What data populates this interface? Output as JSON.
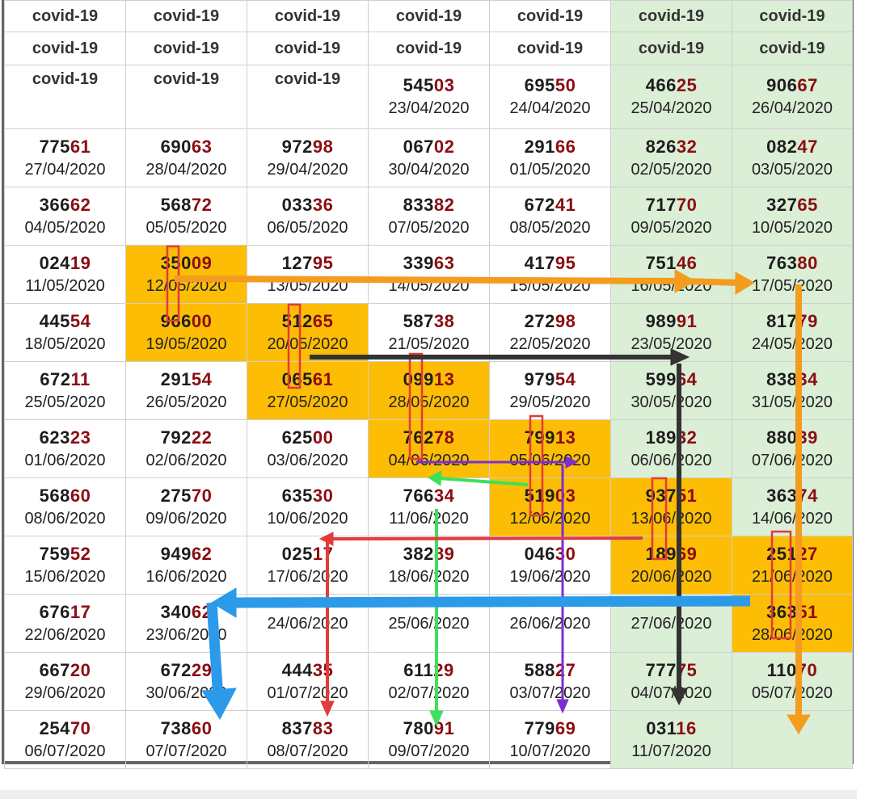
{
  "header_rows": [
    [
      "covid-19",
      "covid-19",
      "covid-19",
      "covid-19",
      "covid-19",
      "covid-19",
      "covid-19"
    ],
    [
      "covid-19",
      "covid-19",
      "covid-19",
      "covid-19",
      "covid-19",
      "covid-19",
      "covid-19"
    ]
  ],
  "row3": {
    "labels": [
      "covid-19",
      "covid-19",
      "covid-19"
    ],
    "cells": [
      {
        "a": "545",
        "b": "03",
        "date": "23/04/2020"
      },
      {
        "a": "695",
        "b": "50",
        "date": "24/04/2020"
      },
      {
        "a": "466",
        "b": "25",
        "date": "25/04/2020"
      },
      {
        "a": "906",
        "b": "67",
        "date": "26/04/2020"
      }
    ]
  },
  "rows": [
    [
      {
        "a": "775",
        "b": "61",
        "date": "27/04/2020"
      },
      {
        "a": "690",
        "b": "63",
        "date": "28/04/2020"
      },
      {
        "a": "972",
        "b": "98",
        "date": "29/04/2020"
      },
      {
        "a": "067",
        "b": "02",
        "date": "30/04/2020"
      },
      {
        "a": "291",
        "b": "66",
        "date": "01/05/2020"
      },
      {
        "a": "826",
        "b": "32",
        "date": "02/05/2020"
      },
      {
        "a": "082",
        "b": "47",
        "date": "03/05/2020"
      }
    ],
    [
      {
        "a": "366",
        "b": "62",
        "date": "04/05/2020"
      },
      {
        "a": "568",
        "b": "72",
        "date": "05/05/2020"
      },
      {
        "a": "033",
        "b": "36",
        "date": "06/05/2020"
      },
      {
        "a": "833",
        "b": "82",
        "date": "07/05/2020"
      },
      {
        "a": "672",
        "b": "41",
        "date": "08/05/2020"
      },
      {
        "a": "717",
        "b": "70",
        "date": "09/05/2020"
      },
      {
        "a": "327",
        "b": "65",
        "date": "10/05/2020"
      }
    ],
    [
      {
        "a": "024",
        "b": "19",
        "date": "11/05/2020"
      },
      {
        "a": "350",
        "b": "09",
        "date": "12/05/2020"
      },
      {
        "a": "127",
        "b": "95",
        "date": "13/05/2020"
      },
      {
        "a": "339",
        "b": "63",
        "date": "14/05/2020"
      },
      {
        "a": "417",
        "b": "95",
        "date": "15/05/2020"
      },
      {
        "a": "751",
        "b": "46",
        "date": "16/05/2020"
      },
      {
        "a": "763",
        "b": "80",
        "date": "17/05/2020"
      }
    ],
    [
      {
        "a": "445",
        "b": "54",
        "date": "18/05/2020"
      },
      {
        "a": "966",
        "b": "00",
        "date": "19/05/2020"
      },
      {
        "a": "512",
        "b": "65",
        "date": "20/05/2020"
      },
      {
        "a": "587",
        "b": "38",
        "date": "21/05/2020"
      },
      {
        "a": "272",
        "b": "98",
        "date": "22/05/2020"
      },
      {
        "a": "989",
        "b": "91",
        "date": "23/05/2020"
      },
      {
        "a": "817",
        "b": "79",
        "date": "24/05/2020"
      }
    ],
    [
      {
        "a": "672",
        "b": "11",
        "date": "25/05/2020"
      },
      {
        "a": "291",
        "b": "54",
        "date": "26/05/2020"
      },
      {
        "a": "065",
        "b": "61",
        "date": "27/05/2020"
      },
      {
        "a": "099",
        "b": "13",
        "date": "28/05/2020"
      },
      {
        "a": "979",
        "b": "54",
        "date": "29/05/2020"
      },
      {
        "a": "599",
        "b": "64",
        "date": "30/05/2020"
      },
      {
        "a": "838",
        "b": "34",
        "date": "31/05/2020"
      }
    ],
    [
      {
        "a": "623",
        "b": "23",
        "date": "01/06/2020"
      },
      {
        "a": "792",
        "b": "22",
        "date": "02/06/2020"
      },
      {
        "a": "625",
        "b": "00",
        "date": "03/06/2020"
      },
      {
        "a": "762",
        "b": "78",
        "date": "04/06/2020"
      },
      {
        "a": "799",
        "b": "13",
        "date": "05/06/2020"
      },
      {
        "a": "189",
        "b": "32",
        "date": "06/06/2020"
      },
      {
        "a": "880",
        "b": "39",
        "date": "07/06/2020"
      }
    ],
    [
      {
        "a": "568",
        "b": "60",
        "date": "08/06/2020"
      },
      {
        "a": "275",
        "b": "70",
        "date": "09/06/2020"
      },
      {
        "a": "635",
        "b": "30",
        "date": "10/06/2020"
      },
      {
        "a": "766",
        "b": "34",
        "date": "11/06/2020"
      },
      {
        "a": "519",
        "b": "03",
        "date": "12/06/2020"
      },
      {
        "a": "937",
        "b": "51",
        "date": "13/06/2020"
      },
      {
        "a": "363",
        "b": "74",
        "date": "14/06/2020"
      }
    ],
    [
      {
        "a": "759",
        "b": "52",
        "date": "15/06/2020"
      },
      {
        "a": "949",
        "b": "62",
        "date": "16/06/2020"
      },
      {
        "a": "025",
        "b": "17",
        "date": "17/06/2020"
      },
      {
        "a": "382",
        "b": "89",
        "date": "18/06/2020"
      },
      {
        "a": "046",
        "b": "30",
        "date": "19/06/2020"
      },
      {
        "a": "189",
        "b": "69",
        "date": "20/06/2020"
      },
      {
        "a": "251",
        "b": "27",
        "date": "21/06/2020"
      }
    ],
    [
      {
        "a": "676",
        "b": "17",
        "date": "22/06/2020"
      },
      {
        "a": "340",
        "b": "62",
        "date": "23/06/2020"
      },
      {
        "a": "",
        "b": "",
        "date": "24/06/2020"
      },
      {
        "a": "",
        "b": "",
        "date": "25/06/2020"
      },
      {
        "a": "",
        "b": "",
        "date": "26/06/2020"
      },
      {
        "a": "",
        "b": "",
        "date": "27/06/2020"
      },
      {
        "a": "363",
        "b": "51",
        "date": "28/06/2020"
      }
    ],
    [
      {
        "a": "667",
        "b": "20",
        "date": "29/06/2020"
      },
      {
        "a": "672",
        "b": "29",
        "date": "30/06/2020"
      },
      {
        "a": "444",
        "b": "35",
        "date": "01/07/2020"
      },
      {
        "a": "611",
        "b": "29",
        "date": "02/07/2020"
      },
      {
        "a": "588",
        "b": "27",
        "date": "03/07/2020"
      },
      {
        "a": "777",
        "b": "75",
        "date": "04/07/2020"
      },
      {
        "a": "110",
        "b": "70",
        "date": "05/07/2020"
      }
    ],
    [
      {
        "a": "254",
        "b": "70",
        "date": "06/07/2020"
      },
      {
        "a": "738",
        "b": "60",
        "date": "07/07/2020"
      },
      {
        "a": "837",
        "b": "83",
        "date": "08/07/2020"
      },
      {
        "a": "780",
        "b": "91",
        "date": "09/07/2020"
      },
      {
        "a": "779",
        "b": "69",
        "date": "10/07/2020"
      },
      {
        "a": "031",
        "b": "16",
        "date": "11/07/2020"
      },
      null
    ]
  ],
  "highlighted_cells": [
    "r2c1",
    "r3c1",
    "r3c2",
    "r4c2",
    "r4c3",
    "r5c3",
    "r5c4",
    "r6c4",
    "r6c5",
    "r7c5",
    "r7c6",
    "r8c6"
  ],
  "colors": {
    "green_column": "#dbeed6",
    "highlight": "#fcbd04",
    "number_suffix": "#8b0d12",
    "arrow_orange": "#f39c1e",
    "arrow_dark": "#333333",
    "arrow_purple": "#7b2fd0",
    "arrow_green": "#3ee05a",
    "arrow_red": "#e23b3b",
    "arrow_blue": "#2b9ae8"
  }
}
